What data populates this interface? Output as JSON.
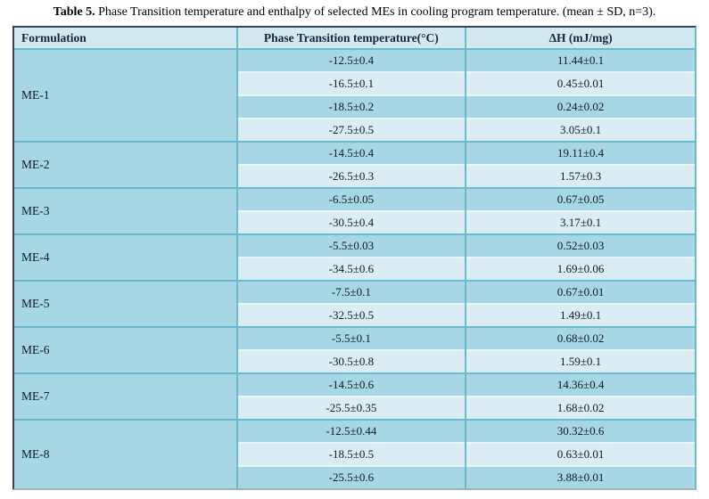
{
  "caption": {
    "label": "Table 5.",
    "text": " Phase Transition temperature and enthalpy of selected MEs in cooling program temperature. (mean ± SD, n=3)."
  },
  "table": {
    "columns": [
      "Formulation",
      "Phase Transition temperature(°C)",
      "ΔH (mJ/mg)"
    ],
    "groups": [
      {
        "formulation": "ME-1",
        "rows": [
          [
            "-12.5±0.4",
            "11.44±0.1"
          ],
          [
            "-16.5±0.1",
            "0.45±0.01"
          ],
          [
            "-18.5±0.2",
            "0.24±0.02"
          ],
          [
            "-27.5±0.5",
            "3.05±0.1"
          ]
        ]
      },
      {
        "formulation": "ME-2",
        "rows": [
          [
            "-14.5±0.4",
            "19.11±0.4"
          ],
          [
            "-26.5±0.3",
            "1.57±0.3"
          ]
        ]
      },
      {
        "formulation": "ME-3",
        "rows": [
          [
            "-6.5±0.05",
            "0.67±0.05"
          ],
          [
            "-30.5±0.4",
            "3.17±0.1"
          ]
        ]
      },
      {
        "formulation": "ME-4",
        "rows": [
          [
            "-5.5±0.03",
            "0.52±0.03"
          ],
          [
            "-34.5±0.6",
            "1.69±0.06"
          ]
        ]
      },
      {
        "formulation": "ME-5",
        "rows": [
          [
            "-7.5±0.1",
            "0.67±0.01"
          ],
          [
            "-32.5±0.5",
            "1.49±0.1"
          ]
        ]
      },
      {
        "formulation": "ME-6",
        "rows": [
          [
            "-5.5±0.1",
            "0.68±0.02"
          ],
          [
            "-30.5±0.8",
            "1.59±0.1"
          ]
        ]
      },
      {
        "formulation": "ME-7",
        "rows": [
          [
            "-14.5±0.6",
            "14.36±0.4"
          ],
          [
            "-25.5±0.35",
            "1.68±0.02"
          ]
        ]
      },
      {
        "formulation": "ME-8",
        "rows": [
          [
            "-12.5±0.44",
            "30.32±0.6"
          ],
          [
            "-18.5±0.5",
            "0.63±0.01"
          ],
          [
            "-25.5±0.6",
            "3.88±0.01"
          ]
        ]
      }
    ]
  },
  "colors": {
    "row_dark": "#a7d7e4",
    "row_light": "#d9edf3",
    "header_bg": "#d3e9f0",
    "grid_teal": "#69bace",
    "sub_separator": "#ecf6f9",
    "header_text": "#1a2440",
    "body_text": "#101a26"
  }
}
